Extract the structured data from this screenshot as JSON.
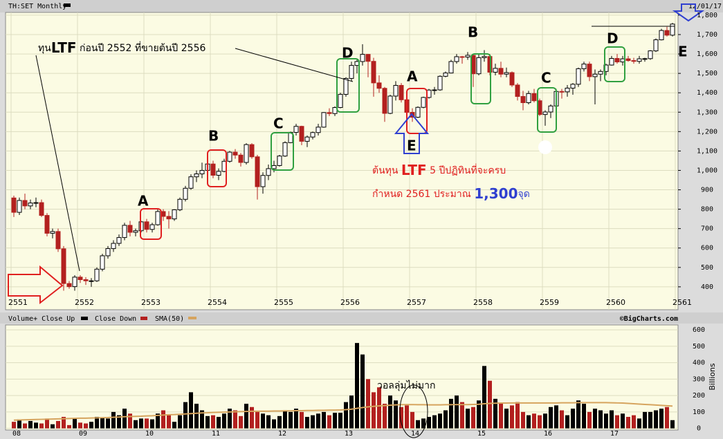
{
  "chart_data": [
    {
      "type": "candlestick",
      "title": "TH:SET Monthly",
      "date_label": "12/01/17",
      "grid": true,
      "up_color": "#000000",
      "down_color": "#b3201f",
      "up_fill": "#ffffff",
      "categories": [
        "2551",
        null,
        null,
        null,
        null,
        null,
        null,
        null,
        null,
        null,
        null,
        null,
        "2552",
        null,
        null,
        null,
        null,
        null,
        null,
        null,
        null,
        null,
        null,
        null,
        "2553",
        null,
        null,
        null,
        null,
        null,
        null,
        null,
        null,
        null,
        null,
        null,
        "2554",
        null,
        null,
        null,
        null,
        null,
        null,
        null,
        null,
        null,
        null,
        null,
        "2555",
        null,
        null,
        null,
        null,
        null,
        null,
        null,
        null,
        null,
        null,
        null,
        "2556",
        null,
        null,
        null,
        null,
        null,
        null,
        null,
        null,
        null,
        null,
        null,
        "2557",
        null,
        null,
        null,
        null,
        null,
        null,
        null,
        null,
        null,
        null,
        null,
        "2558",
        null,
        null,
        null,
        null,
        null,
        null,
        null,
        null,
        null,
        null,
        null,
        "2559",
        null,
        null,
        null,
        null,
        null,
        null,
        null,
        null,
        null,
        null,
        null,
        "2560",
        null,
        null,
        null,
        null,
        null,
        null,
        null,
        null,
        null,
        null,
        null,
        "2561"
      ],
      "open": [
        858,
        784,
        845,
        817,
        832,
        834,
        768,
        676,
        685,
        596,
        417,
        401,
        450,
        437,
        431,
        431,
        491,
        560,
        597,
        624,
        654,
        717,
        681,
        689,
        735,
        696,
        720,
        788,
        763,
        750,
        797,
        851,
        908,
        967,
        982,
        1000,
        1033,
        975,
        995,
        1047,
        1094,
        1079,
        1041,
        1133,
        1070,
        916,
        974,
        1009,
        1025,
        1074,
        1143,
        1196,
        1227,
        1150,
        1172,
        1195,
        1223,
        1298,
        1293,
        1324,
        1392,
        1474,
        1541,
        1561,
        1598,
        1562,
        1451,
        1423,
        1294,
        1383,
        1438,
        1364,
        1299,
        1274,
        1325,
        1376,
        1414,
        1415,
        1485,
        1502,
        1561,
        1586,
        1584,
        1593,
        1498,
        1581,
        1587,
        1506,
        1526,
        1496,
        1504,
        1440,
        1381,
        1349,
        1396,
        1359,
        1288,
        1301,
        1332,
        1407,
        1405,
        1424,
        1444,
        1524,
        1548,
        1483,
        1496,
        1510,
        1543,
        1577,
        1559,
        1575,
        1566,
        1562,
        1575,
        1576,
        1616,
        1673,
        1721,
        1697,
        null
      ],
      "high": [
        870,
        860,
        880,
        850,
        860,
        850,
        780,
        700,
        700,
        610,
        430,
        460,
        460,
        450,
        445,
        500,
        570,
        610,
        640,
        670,
        730,
        740,
        700,
        740,
        750,
        730,
        800,
        800,
        790,
        800,
        860,
        920,
        980,
        1000,
        1040,
        1050,
        1050,
        1010,
        1060,
        1100,
        1110,
        1090,
        1140,
        1140,
        1080,
        990,
        1030,
        1050,
        1080,
        1150,
        1200,
        1240,
        1230,
        1180,
        1200,
        1240,
        1300,
        1320,
        1330,
        1400,
        1480,
        1560,
        1570,
        1650,
        1600,
        1580,
        1490,
        1430,
        1390,
        1460,
        1450,
        1380,
        1320,
        1330,
        1380,
        1420,
        1430,
        1490,
        1510,
        1570,
        1600,
        1590,
        1610,
        1600,
        1600,
        1620,
        1600,
        1550,
        1560,
        1530,
        1510,
        1450,
        1410,
        1410,
        1420,
        1370,
        1310,
        1340,
        1420,
        1420,
        1440,
        1450,
        1530,
        1560,
        1560,
        1520,
        1520,
        1550,
        1590,
        1600,
        1590,
        1590,
        1580,
        1590,
        1580,
        1620,
        1680,
        1730,
        1740,
        1760,
        null
      ],
      "low": [
        760,
        770,
        800,
        800,
        810,
        760,
        660,
        650,
        580,
        380,
        390,
        380,
        420,
        410,
        400,
        425,
        480,
        545,
        580,
        610,
        640,
        660,
        660,
        680,
        680,
        680,
        715,
        740,
        700,
        740,
        790,
        840,
        900,
        940,
        960,
        990,
        960,
        950,
        990,
        1040,
        1060,
        1020,
        1030,
        1060,
        850,
        880,
        950,
        990,
        1020,
        1070,
        1140,
        1180,
        1130,
        1120,
        1160,
        1180,
        1220,
        1280,
        1280,
        1320,
        1380,
        1460,
        1500,
        1540,
        1480,
        1380,
        1400,
        1250,
        1290,
        1360,
        1350,
        1250,
        1250,
        1270,
        1320,
        1370,
        1390,
        1410,
        1480,
        1500,
        1550,
        1550,
        1570,
        1430,
        1490,
        1560,
        1490,
        1490,
        1480,
        1480,
        1430,
        1360,
        1310,
        1340,
        1350,
        1280,
        1230,
        1270,
        1320,
        1370,
        1380,
        1390,
        1430,
        1510,
        1460,
        1340,
        1460,
        1490,
        1540,
        1550,
        1540,
        1560,
        1550,
        1550,
        1560,
        1570,
        1610,
        1670,
        1690,
        1690,
        null
      ],
      "close": [
        784,
        845,
        817,
        832,
        834,
        768,
        676,
        685,
        596,
        417,
        401,
        450,
        437,
        431,
        431,
        491,
        560,
        597,
        624,
        654,
        717,
        681,
        689,
        735,
        696,
        720,
        788,
        763,
        750,
        797,
        851,
        908,
        967,
        982,
        1000,
        1033,
        975,
        995,
        1047,
        1094,
        1079,
        1041,
        1133,
        1070,
        916,
        974,
        1009,
        1025,
        1074,
        1143,
        1196,
        1227,
        1150,
        1172,
        1195,
        1223,
        1298,
        1293,
        1324,
        1392,
        1474,
        1541,
        1561,
        1598,
        1562,
        1451,
        1423,
        1294,
        1383,
        1438,
        1364,
        1299,
        1274,
        1325,
        1376,
        1414,
        1415,
        1485,
        1502,
        1561,
        1586,
        1584,
        1593,
        1498,
        1581,
        1587,
        1506,
        1526,
        1496,
        1504,
        1440,
        1381,
        1349,
        1396,
        1359,
        1288,
        1301,
        1332,
        1407,
        1405,
        1424,
        1444,
        1524,
        1548,
        1483,
        1496,
        1510,
        1543,
        1577,
        1559,
        1575,
        1566,
        1562,
        1575,
        1576,
        1616,
        1673,
        1721,
        1697,
        1754,
        null
      ],
      "ylim": [
        282,
        1814
      ],
      "yticks": [
        400,
        500,
        600,
        700,
        800,
        900,
        {
          "value": 1000,
          "label": "1,000"
        },
        {
          "value": 1100,
          "label": "1,100"
        },
        {
          "value": 1200,
          "label": "1,200"
        },
        {
          "value": 1300,
          "label": "1,300"
        },
        {
          "value": 1400,
          "label": "1,400"
        },
        {
          "value": 1500,
          "label": "1,500"
        },
        {
          "value": 1600,
          "label": "1,600"
        },
        {
          "value": 1700,
          "label": "1,700"
        },
        {
          "value": 1800,
          "label": "1,800"
        }
      ],
      "annotations": [
        "ทุน",
        "LTF",
        "ก่อนปี 2552 ที่ขายต้นปี 2556",
        "A",
        "B",
        "C",
        "D",
        "A",
        "E",
        "B",
        "C",
        "D",
        "E",
        "ต้นทุน",
        "LTF",
        "5 ปีปฏิทินที่จะครบ",
        "กำหนด 2561 ประมาณ",
        "1,300",
        "จุด"
      ]
    },
    {
      "type": "volume",
      "title": "Volume+ Close Up",
      "down_label": "Close Down",
      "credit": "©BigCharts.com",
      "y_label": "Billions",
      "annotation": "วอลลุ่มไม่มาก",
      "categories": [
        "08",
        null,
        null,
        null,
        null,
        null,
        null,
        null,
        null,
        null,
        null,
        null,
        "09",
        null,
        null,
        null,
        null,
        null,
        null,
        null,
        null,
        null,
        null,
        null,
        "10",
        null,
        null,
        null,
        null,
        null,
        null,
        null,
        null,
        null,
        null,
        null,
        "11",
        null,
        null,
        null,
        null,
        null,
        null,
        null,
        null,
        null,
        null,
        null,
        "12",
        null,
        null,
        null,
        null,
        null,
        null,
        null,
        null,
        null,
        null,
        null,
        "13",
        null,
        null,
        null,
        null,
        null,
        null,
        null,
        null,
        null,
        null,
        null,
        "14",
        null,
        null,
        null,
        null,
        null,
        null,
        null,
        null,
        null,
        null,
        null,
        "15",
        null,
        null,
        null,
        null,
        null,
        null,
        null,
        null,
        null,
        null,
        null,
        "16",
        null,
        null,
        null,
        null,
        null,
        null,
        null,
        null,
        null,
        null,
        null,
        "17",
        null,
        null,
        null,
        null,
        null,
        null,
        null,
        null,
        null,
        null,
        null
      ],
      "values": [
        40,
        55,
        30,
        45,
        35,
        30,
        60,
        25,
        45,
        70,
        20,
        60,
        35,
        30,
        40,
        70,
        65,
        60,
        100,
        80,
        120,
        90,
        50,
        60,
        60,
        55,
        90,
        110,
        80,
        40,
        80,
        160,
        220,
        150,
        110,
        75,
        80,
        70,
        90,
        120,
        110,
        75,
        150,
        130,
        100,
        90,
        80,
        55,
        75,
        110,
        100,
        120,
        100,
        70,
        80,
        90,
        100,
        80,
        95,
        95,
        160,
        200,
        520,
        450,
        300,
        220,
        250,
        150,
        200,
        170,
        130,
        140,
        100,
        50,
        60,
        70,
        80,
        90,
        110,
        180,
        200,
        160,
        120,
        130,
        170,
        380,
        290,
        180,
        150,
        120,
        140,
        160,
        100,
        80,
        90,
        80,
        90,
        130,
        140,
        110,
        80,
        120,
        170,
        150,
        100,
        120,
        110,
        90,
        110,
        80,
        90,
        70,
        80,
        60,
        100,
        100,
        110,
        120,
        130,
        50
      ],
      "sma": {
        "name": "SMA(50)",
        "color": "#d6a45e",
        "values": [
          50,
          51,
          52,
          53,
          54,
          55,
          56,
          57,
          58,
          59,
          60,
          61,
          62,
          62,
          63,
          64,
          65,
          66,
          68,
          69,
          71,
          72,
          73,
          74,
          76,
          77,
          79,
          81,
          83,
          84,
          86,
          88,
          90,
          92,
          94,
          95,
          97,
          98,
          99,
          100,
          101,
          102,
          103,
          104,
          104,
          105,
          105,
          106,
          106,
          107,
          107,
          108,
          108,
          109,
          109,
          110,
          110,
          111,
          111,
          112,
          114,
          117,
          122,
          127,
          131,
          134,
          137,
          139,
          141,
          143,
          144,
          145,
          145,
          144,
          144,
          143,
          143,
          143,
          144,
          144,
          145,
          145,
          145,
          146,
          147,
          150,
          152,
          153,
          154,
          154,
          155,
          155,
          155,
          155,
          155,
          155,
          155,
          155,
          155,
          156,
          156,
          156,
          157,
          157,
          157,
          157,
          157,
          157,
          156,
          155,
          154,
          152,
          150,
          148,
          146,
          144,
          142,
          140,
          138,
          136
        ]
      },
      "ylim": [
        -10,
        630
      ],
      "yticks": [
        0,
        100,
        200,
        300,
        400,
        500,
        600
      ],
      "grid": true
    }
  ]
}
